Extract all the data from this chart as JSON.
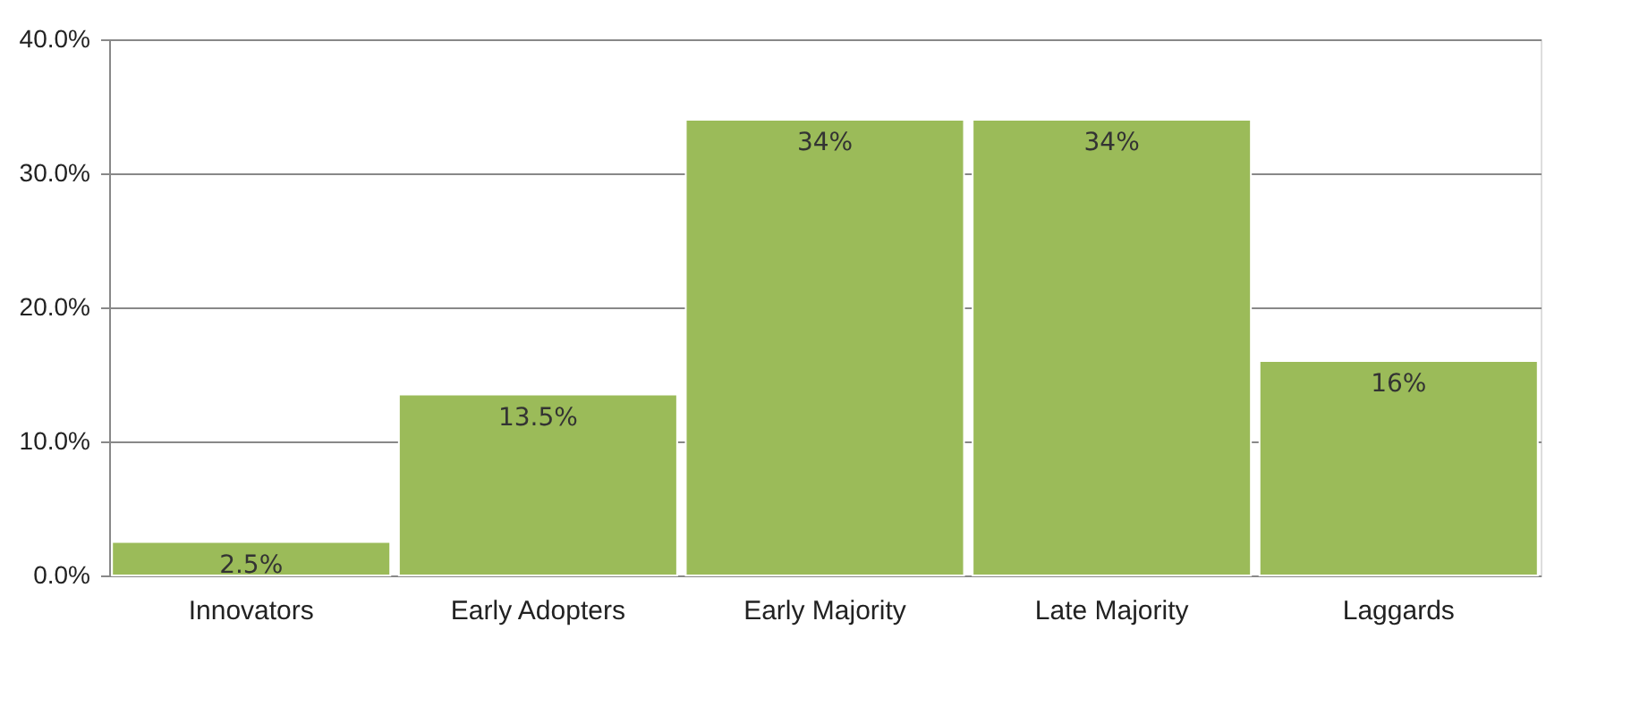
{
  "chart_data": {
    "type": "bar",
    "categories": [
      "Innovators",
      "Early Adopters",
      "Early Majority",
      "Late Majority",
      "Laggards"
    ],
    "values": [
      2.5,
      13.5,
      34,
      34,
      16
    ],
    "value_labels": [
      "2.5%",
      "13.5%",
      "34%",
      "34%",
      "16%"
    ],
    "color": "#9bbb59",
    "ylim": [
      0,
      40
    ],
    "yticks": [
      {
        "value": 0,
        "label": "0.0%"
      },
      {
        "value": 10,
        "label": "10.0%"
      },
      {
        "value": 20,
        "label": "20.0%"
      },
      {
        "value": 30,
        "label": "30.0%"
      },
      {
        "value": 40,
        "label": "40.0%"
      }
    ],
    "grid": "y"
  }
}
